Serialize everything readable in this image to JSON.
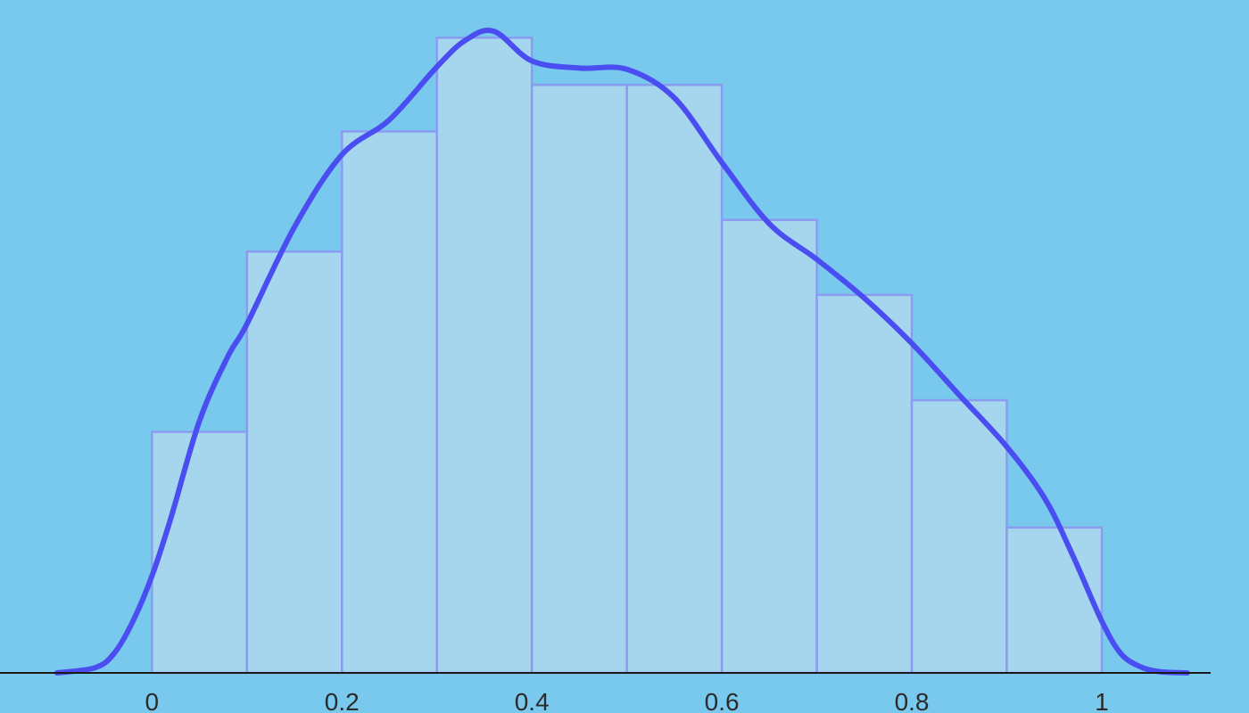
{
  "chart_data": {
    "type": "bar",
    "title": "",
    "xlabel": "",
    "ylabel": "",
    "xlim": [
      -0.16,
      1.155
    ],
    "ylim": [
      0,
      1.0
    ],
    "y_axis_shown": false,
    "grid": false,
    "legend": "none",
    "bin_edges": [
      0,
      0.1,
      0.2,
      0.3,
      0.4,
      0.5,
      0.6,
      0.7,
      0.8,
      0.9,
      1.0
    ],
    "values": [
      0.373,
      0.652,
      0.838,
      0.983,
      0.91,
      0.91,
      0.701,
      0.585,
      0.422,
      0.225
    ],
    "x_ticks": [
      0,
      0.2,
      0.4,
      0.6,
      0.8,
      1
    ],
    "x_tick_labels": [
      "0",
      "0.2",
      "0.4",
      "0.6",
      "0.8",
      "1"
    ],
    "density_curve": {
      "x": [
        -0.1,
        -0.06,
        -0.04,
        -0.02,
        0,
        0.02,
        0.05,
        0.08,
        0.1,
        0.15,
        0.2,
        0.25,
        0.3,
        0.33,
        0.36,
        0.4,
        0.45,
        0.5,
        0.55,
        0.6,
        0.65,
        0.7,
        0.75,
        0.8,
        0.85,
        0.9,
        0.94,
        0.97,
        1.0,
        1.02,
        1.04,
        1.06,
        1.09
      ],
      "y": [
        0,
        0.008,
        0.03,
        0.08,
        0.15,
        0.24,
        0.39,
        0.49,
        0.54,
        0.69,
        0.802,
        0.856,
        0.938,
        0.979,
        0.993,
        0.947,
        0.936,
        0.934,
        0.89,
        0.79,
        0.695,
        0.64,
        0.58,
        0.51,
        0.43,
        0.35,
        0.27,
        0.18,
        0.08,
        0.03,
        0.01,
        0.002,
        0
      ]
    },
    "colors": {
      "background": "#79c9ef",
      "bar_fill": "#a6d6ed",
      "bar_edge": "#8a9cf0",
      "curve": "#4a4df0",
      "axis": "#1a1a1a"
    }
  }
}
